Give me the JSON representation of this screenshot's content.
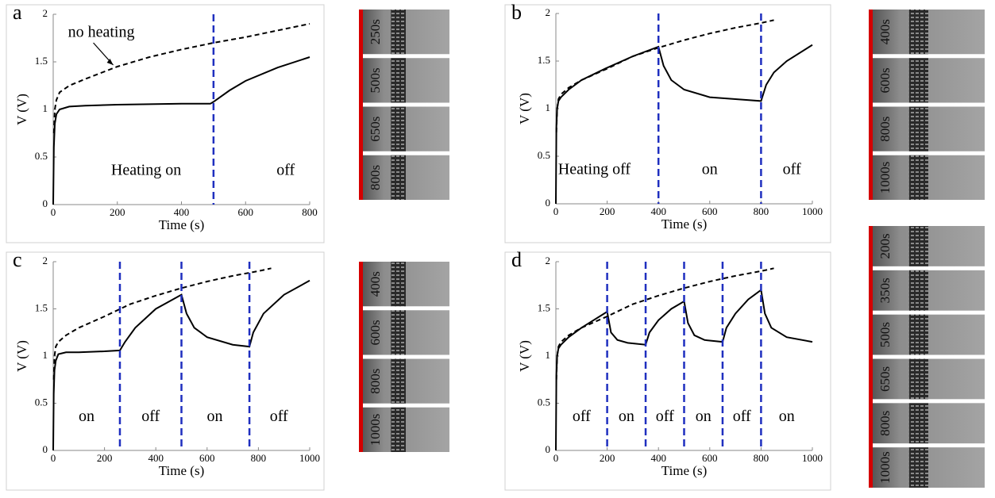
{
  "chart_data": [
    {
      "type": "line",
      "panel": "a",
      "xlabel": "Time (s)",
      "ylabel": "V (V)",
      "xlim": [
        0,
        800
      ],
      "ylim": [
        0,
        2
      ],
      "xticks": [
        0,
        200,
        400,
        600,
        800
      ],
      "yticks": [
        0,
        0.5,
        1,
        1.5,
        2
      ],
      "vlines": [
        500
      ],
      "vline_color": "#1f2fbf",
      "series": [
        {
          "style": "solid",
          "color": "#000000",
          "x": [
            0,
            2,
            5,
            10,
            20,
            50,
            100,
            200,
            300,
            400,
            490,
            500,
            550,
            600,
            700,
            800
          ],
          "values": [
            0,
            0.6,
            0.85,
            0.95,
            1.0,
            1.03,
            1.04,
            1.05,
            1.055,
            1.06,
            1.06,
            1.08,
            1.2,
            1.3,
            1.44,
            1.55
          ]
        },
        {
          "style": "dashed",
          "color": "#000000",
          "x": [
            2,
            5,
            10,
            20,
            50,
            100,
            200,
            300,
            400,
            500,
            600,
            700,
            800
          ],
          "values": [
            0.75,
            1.0,
            1.1,
            1.18,
            1.25,
            1.32,
            1.45,
            1.55,
            1.63,
            1.7,
            1.76,
            1.83,
            1.9
          ]
        }
      ],
      "annotations": [
        {
          "text": "no heating",
          "x": 150,
          "y": 1.8
        },
        {
          "text": "Heating on",
          "x": 290,
          "y": 0.35
        },
        {
          "text": "off",
          "x": 725,
          "y": 0.35
        }
      ]
    },
    {
      "type": "line",
      "panel": "b",
      "xlabel": "Time (s)",
      "ylabel": "V (V)",
      "xlim": [
        0,
        1000
      ],
      "ylim": [
        0,
        2
      ],
      "xticks": [
        0,
        200,
        400,
        600,
        800,
        1000
      ],
      "yticks": [
        0,
        0.5,
        1,
        1.5,
        2
      ],
      "vlines": [
        400,
        800
      ],
      "vline_color": "#1f2fbf",
      "series": [
        {
          "style": "solid",
          "color": "#000000",
          "x": [
            0,
            2,
            5,
            10,
            20,
            50,
            100,
            200,
            300,
            400,
            420,
            450,
            500,
            600,
            700,
            800,
            820,
            850,
            900,
            1000
          ],
          "values": [
            0,
            0.8,
            1.0,
            1.08,
            1.12,
            1.2,
            1.3,
            1.43,
            1.55,
            1.65,
            1.45,
            1.3,
            1.2,
            1.12,
            1.1,
            1.08,
            1.25,
            1.38,
            1.5,
            1.67
          ]
        },
        {
          "style": "dashed",
          "color": "#000000",
          "x": [
            2,
            5,
            10,
            20,
            50,
            100,
            200,
            300,
            400,
            500,
            600,
            700,
            800,
            850
          ],
          "values": [
            0.75,
            1.0,
            1.1,
            1.15,
            1.22,
            1.3,
            1.42,
            1.55,
            1.64,
            1.72,
            1.79,
            1.85,
            1.9,
            1.93
          ]
        }
      ],
      "annotations": [
        {
          "text": "Heating off",
          "x": 150,
          "y": 0.35
        },
        {
          "text": "on",
          "x": 600,
          "y": 0.35
        },
        {
          "text": "off",
          "x": 920,
          "y": 0.35
        }
      ]
    },
    {
      "type": "line",
      "panel": "c",
      "xlabel": "Time (s)",
      "ylabel": "V (V)",
      "xlim": [
        0,
        1000
      ],
      "ylim": [
        0,
        2
      ],
      "xticks": [
        0,
        200,
        400,
        600,
        800,
        1000
      ],
      "yticks": [
        0,
        0.5,
        1,
        1.5,
        2
      ],
      "vlines": [
        260,
        500,
        765
      ],
      "vline_color": "#1f2fbf",
      "series": [
        {
          "style": "solid",
          "color": "#000000",
          "x": [
            0,
            2,
            5,
            10,
            20,
            50,
            100,
            200,
            260,
            280,
            320,
            400,
            500,
            520,
            550,
            600,
            700,
            765,
            780,
            820,
            900,
            1000
          ],
          "values": [
            0,
            0.6,
            0.85,
            0.95,
            1.02,
            1.04,
            1.04,
            1.05,
            1.06,
            1.15,
            1.3,
            1.5,
            1.65,
            1.45,
            1.3,
            1.2,
            1.12,
            1.1,
            1.25,
            1.45,
            1.65,
            1.8
          ]
        },
        {
          "style": "dashed",
          "color": "#000000",
          "x": [
            2,
            5,
            10,
            20,
            50,
            100,
            200,
            300,
            400,
            500,
            600,
            700,
            800,
            850
          ],
          "values": [
            0.75,
            1.0,
            1.1,
            1.15,
            1.22,
            1.3,
            1.42,
            1.55,
            1.64,
            1.72,
            1.79,
            1.85,
            1.9,
            1.93
          ]
        }
      ],
      "annotations": [
        {
          "text": "on",
          "x": 130,
          "y": 0.35
        },
        {
          "text": "off",
          "x": 380,
          "y": 0.35
        },
        {
          "text": "on",
          "x": 630,
          "y": 0.35
        },
        {
          "text": "off",
          "x": 880,
          "y": 0.35
        }
      ]
    },
    {
      "type": "line",
      "panel": "d",
      "xlabel": "Time (s)",
      "ylabel": "V (V)",
      "xlim": [
        0,
        1000
      ],
      "ylim": [
        0,
        2
      ],
      "xticks": [
        0,
        200,
        400,
        600,
        800,
        1000
      ],
      "yticks": [
        0,
        0.5,
        1,
        1.5,
        2
      ],
      "vlines": [
        200,
        350,
        500,
        650,
        800
      ],
      "vline_color": "#1f2fbf",
      "series": [
        {
          "style": "solid",
          "color": "#000000",
          "x": [
            0,
            2,
            5,
            10,
            20,
            50,
            100,
            200,
            215,
            240,
            280,
            350,
            365,
            400,
            450,
            500,
            515,
            540,
            580,
            650,
            665,
            700,
            750,
            800,
            815,
            840,
            900,
            1000
          ],
          "values": [
            0,
            0.8,
            1.0,
            1.08,
            1.12,
            1.2,
            1.3,
            1.47,
            1.25,
            1.17,
            1.14,
            1.12,
            1.25,
            1.38,
            1.5,
            1.58,
            1.35,
            1.22,
            1.17,
            1.15,
            1.3,
            1.45,
            1.6,
            1.7,
            1.45,
            1.3,
            1.2,
            1.15
          ]
        },
        {
          "style": "dashed",
          "color": "#000000",
          "x": [
            2,
            5,
            10,
            20,
            50,
            100,
            200,
            300,
            400,
            500,
            600,
            700,
            800,
            850
          ],
          "values": [
            0.75,
            1.0,
            1.1,
            1.15,
            1.22,
            1.3,
            1.42,
            1.55,
            1.64,
            1.72,
            1.79,
            1.85,
            1.9,
            1.93
          ]
        }
      ],
      "annotations": [
        {
          "text": "off",
          "x": 100,
          "y": 0.35
        },
        {
          "text": "on",
          "x": 275,
          "y": 0.35
        },
        {
          "text": "off",
          "x": 425,
          "y": 0.35
        },
        {
          "text": "on",
          "x": 575,
          "y": 0.35
        },
        {
          "text": "off",
          "x": 725,
          "y": 0.35
        },
        {
          "text": "on",
          "x": 900,
          "y": 0.35
        }
      ]
    }
  ],
  "micrographs": [
    {
      "labels": [
        "250s",
        "500s",
        "650s",
        "800s"
      ]
    },
    {
      "labels": [
        "400s",
        "600s",
        "800s",
        "1000s"
      ]
    },
    {
      "labels": [
        "400s",
        "600s",
        "800s",
        "1000s"
      ]
    },
    {
      "labels": [
        "200s",
        "350s",
        "500s",
        "650s",
        "800s",
        "1000s"
      ]
    }
  ]
}
